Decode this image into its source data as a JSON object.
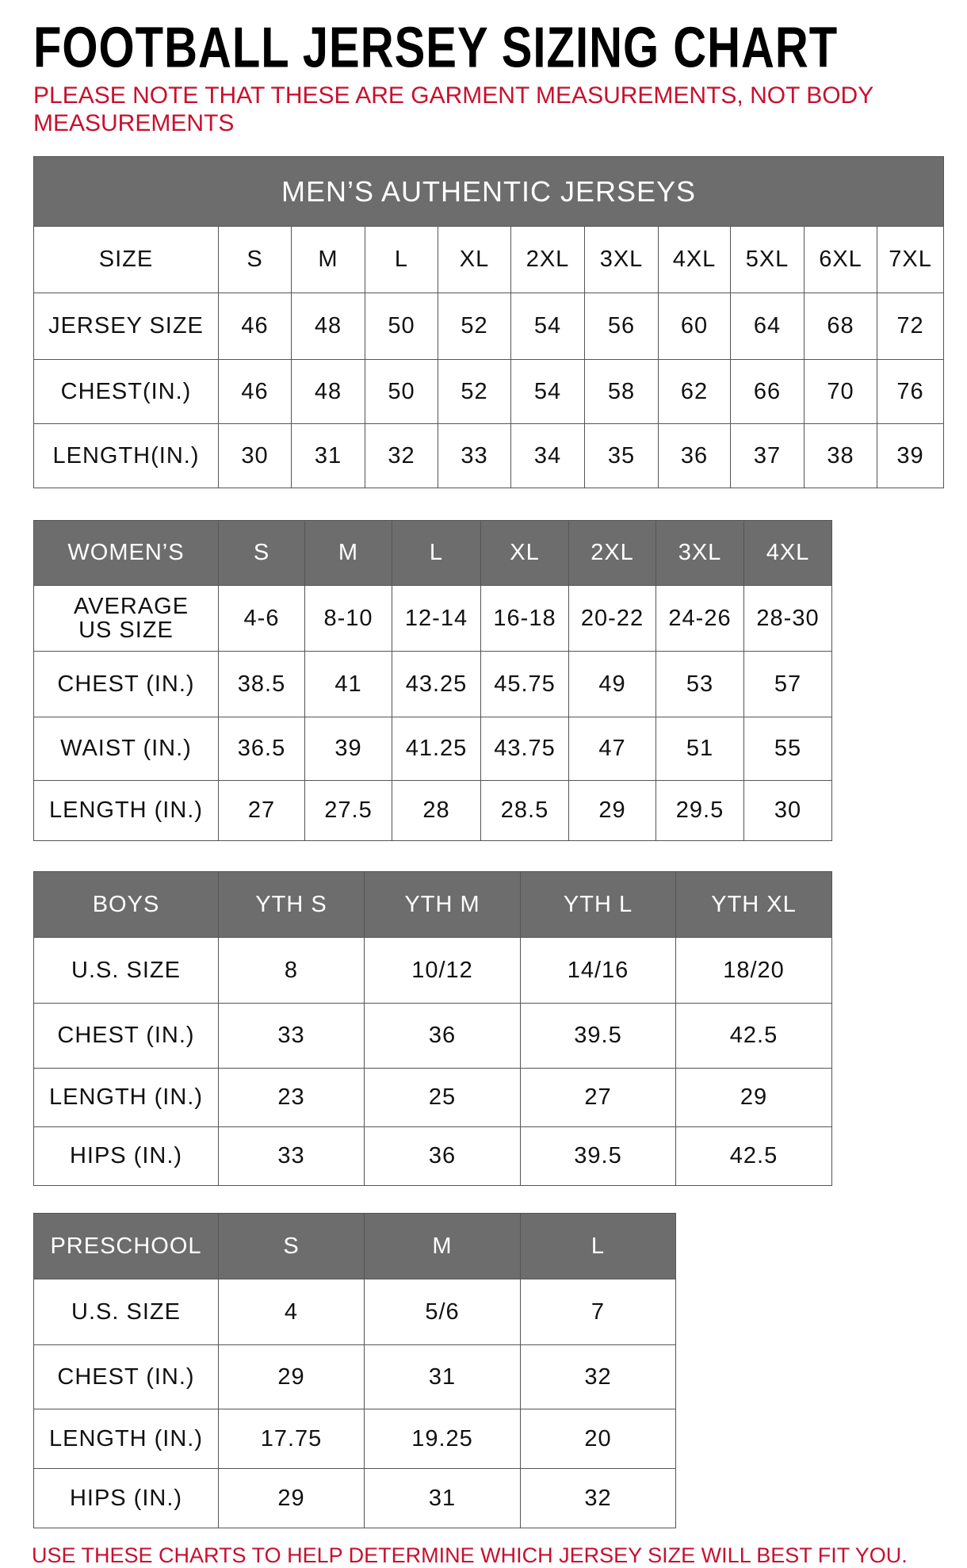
{
  "title": "FOOTBALL JERSEY SIZING CHART",
  "note": "PLEASE NOTE THAT THESE ARE GARMENT MEASUREMENTS, NOT BODY MEASUREMENTS",
  "footer": "USE THESE CHARTS TO HELP DETERMINE WHICH JERSEY SIZE WILL BEST FIT YOU.",
  "colors": {
    "header_bg": "#6d6d6d",
    "note_red": "#c8102e"
  },
  "mens": {
    "caption": "MEN’S AUTHENTIC JERSEYS",
    "header": [
      "SIZE",
      "S",
      "M",
      "L",
      "XL",
      "2XL",
      "3XL",
      "4XL",
      "5XL",
      "6XL",
      "7XL"
    ],
    "rows": [
      [
        "JERSEY SIZE",
        "46",
        "48",
        "50",
        "52",
        "54",
        "56",
        "60",
        "64",
        "68",
        "72"
      ],
      [
        "CHEST(IN.)",
        "46",
        "48",
        "50",
        "52",
        "54",
        "58",
        "62",
        "66",
        "70",
        "76"
      ],
      [
        "LENGTH(IN.)",
        "30",
        "31",
        "32",
        "33",
        "34",
        "35",
        "36",
        "37",
        "38",
        "39"
      ]
    ]
  },
  "womens": {
    "header": [
      "WOMEN’S",
      "S",
      "M",
      "L",
      "XL",
      "2XL",
      "3XL",
      "4XL"
    ],
    "rows": [
      [
        "AVERAGE US SIZE",
        "4-6",
        "8-10",
        "12-14",
        "16-18",
        "20-22",
        "24-26",
        "28-30"
      ],
      [
        "CHEST (IN.)",
        "38.5",
        "41",
        "43.25",
        "45.75",
        "49",
        "53",
        "57"
      ],
      [
        "WAIST (IN.)",
        "36.5",
        "39",
        "41.25",
        "43.75",
        "47",
        "51",
        "55"
      ],
      [
        "LENGTH (IN.)",
        "27",
        "27.5",
        "28",
        "28.5",
        "29",
        "29.5",
        "30"
      ]
    ]
  },
  "boys": {
    "header": [
      "BOYS",
      "YTH S",
      "YTH M",
      "YTH L",
      "YTH XL"
    ],
    "rows": [
      [
        "U.S. SIZE",
        "8",
        "10/12",
        "14/16",
        "18/20"
      ],
      [
        "CHEST (IN.)",
        "33",
        "36",
        "39.5",
        "42.5"
      ],
      [
        "LENGTH (IN.)",
        "23",
        "25",
        "27",
        "29"
      ],
      [
        "HIPS (IN.)",
        "33",
        "36",
        "39.5",
        "42.5"
      ]
    ]
  },
  "preschool": {
    "header": [
      "PRESCHOOL",
      "S",
      "M",
      "L"
    ],
    "rows": [
      [
        "U.S. SIZE",
        "4",
        "5/6",
        "7"
      ],
      [
        "CHEST (IN.)",
        "29",
        "31",
        "32"
      ],
      [
        "LENGTH (IN.)",
        "17.75",
        "19.25",
        "20"
      ],
      [
        "HIPS (IN.)",
        "29",
        "31",
        "32"
      ]
    ]
  }
}
